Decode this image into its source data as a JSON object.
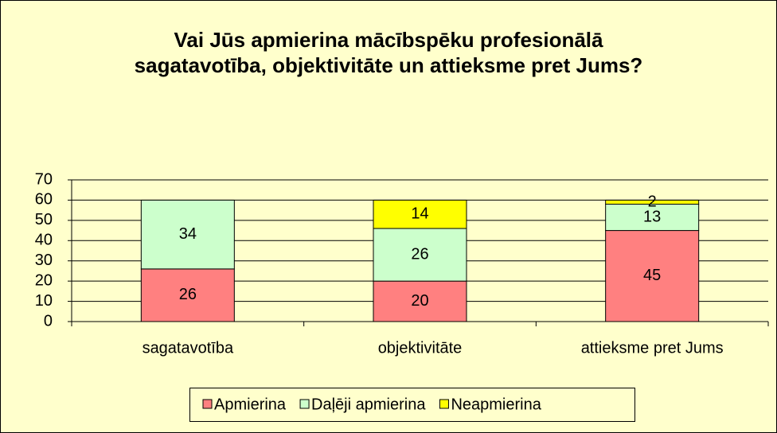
{
  "chart_data": {
    "type": "stacked_bar",
    "title": "Vai Jūs apmierina mācībspēku profesionālā sagatavotība, objektivitāte un attieksme pret Jums?",
    "categories": [
      "sagatavotība",
      "objektivitāte",
      "attieksme pret Jums"
    ],
    "series": [
      {
        "name": "Apmierina",
        "color": "#ff8080",
        "values": [
          26,
          20,
          45
        ]
      },
      {
        "name": "Daļēji apmierina",
        "color": "#ccffcc",
        "values": [
          34,
          26,
          13
        ]
      },
      {
        "name": "Neapmierina",
        "color": "#ffff00",
        "values": [
          null,
          14,
          2
        ]
      }
    ],
    "ylim": [
      0,
      70
    ],
    "yticks": [
      0,
      10,
      20,
      30,
      40,
      50,
      60,
      70
    ],
    "grid": true,
    "legend": "bottom"
  }
}
